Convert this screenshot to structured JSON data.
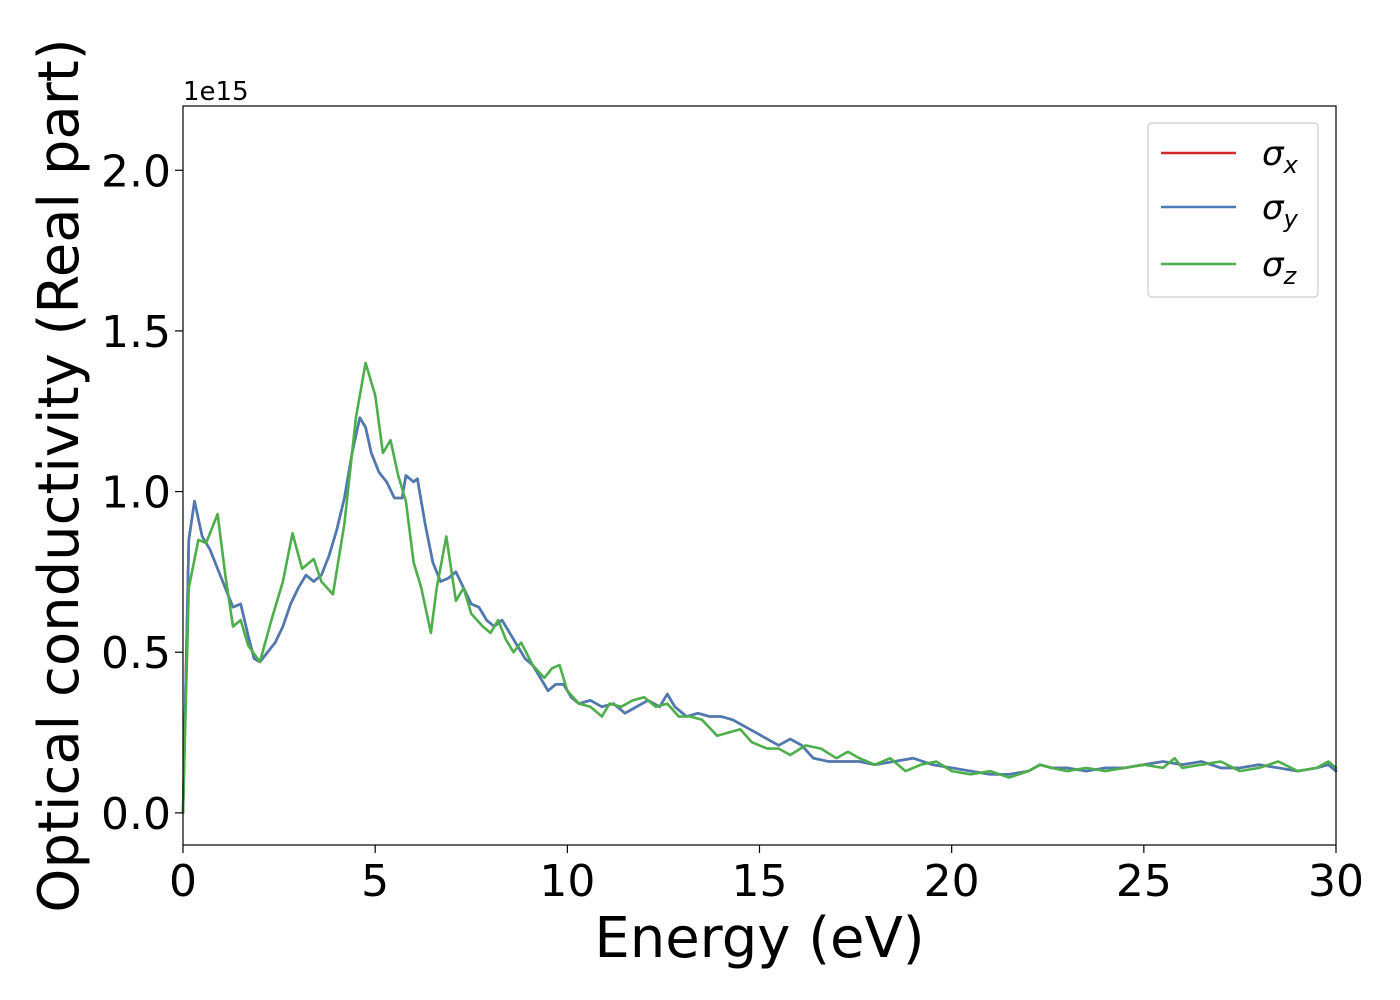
{
  "chart_data": {
    "type": "line",
    "xlabel": "Energy (eV)",
    "ylabel": "Optical conductivity (Real part)",
    "y_offset_label": "1e15",
    "xlim": [
      0,
      30
    ],
    "ylim": [
      -0.1,
      2.2
    ],
    "x_ticks": [
      0,
      5,
      10,
      15,
      20,
      25,
      30
    ],
    "y_ticks": [
      0.0,
      0.5,
      1.0,
      1.5,
      2.0
    ],
    "x_tick_labels": [
      "0",
      "5",
      "10",
      "15",
      "20",
      "25",
      "30"
    ],
    "y_tick_labels": [
      "0.0",
      "0.5",
      "1.0",
      "1.5",
      "2.0"
    ],
    "grid": false,
    "legend_position": "top-right",
    "series": [
      {
        "name": "σx",
        "legend_base": "σ",
        "legend_sub": "x",
        "color": "#d62728",
        "x": [
          0,
          0.15,
          0.3,
          0.5,
          0.7,
          0.9,
          1.1,
          1.3,
          1.5,
          1.7,
          1.85,
          2.0,
          2.2,
          2.4,
          2.6,
          2.8,
          3.0,
          3.2,
          3.4,
          3.6,
          3.8,
          4.0,
          4.2,
          4.4,
          4.6,
          4.75,
          4.9,
          5.1,
          5.3,
          5.5,
          5.7,
          5.8,
          6.0,
          6.1,
          6.3,
          6.5,
          6.7,
          6.9,
          7.1,
          7.3,
          7.5,
          7.7,
          7.9,
          8.1,
          8.3,
          8.5,
          8.7,
          8.9,
          9.1,
          9.3,
          9.5,
          9.7,
          9.9,
          10.1,
          10.3,
          10.6,
          10.9,
          11.2,
          11.5,
          11.8,
          12.1,
          12.4,
          12.6,
          12.8,
          13.1,
          13.4,
          13.7,
          14.0,
          14.3,
          14.6,
          14.9,
          15.2,
          15.5,
          15.8,
          16.1,
          16.4,
          16.8,
          17.2,
          17.6,
          18.0,
          18.5,
          19.0,
          19.5,
          20.0,
          20.5,
          21.0,
          21.5,
          22.0,
          22.3,
          22.6,
          23.0,
          23.5,
          24.0,
          24.5,
          25.0,
          25.5,
          26.0,
          26.5,
          27.0,
          27.5,
          28.0,
          28.5,
          29.0,
          29.5,
          29.8,
          30.0
        ],
        "y": [
          0.0,
          0.85,
          0.97,
          0.86,
          0.82,
          0.76,
          0.7,
          0.64,
          0.65,
          0.55,
          0.48,
          0.47,
          0.5,
          0.53,
          0.58,
          0.65,
          0.7,
          0.74,
          0.72,
          0.74,
          0.8,
          0.88,
          0.98,
          1.12,
          1.23,
          1.2,
          1.12,
          1.06,
          1.03,
          0.98,
          0.98,
          1.05,
          1.03,
          1.04,
          0.9,
          0.78,
          0.72,
          0.73,
          0.75,
          0.7,
          0.65,
          0.64,
          0.6,
          0.58,
          0.6,
          0.56,
          0.52,
          0.48,
          0.46,
          0.42,
          0.38,
          0.4,
          0.4,
          0.36,
          0.34,
          0.35,
          0.33,
          0.34,
          0.31,
          0.33,
          0.35,
          0.33,
          0.37,
          0.33,
          0.3,
          0.31,
          0.3,
          0.3,
          0.29,
          0.27,
          0.25,
          0.23,
          0.21,
          0.23,
          0.21,
          0.17,
          0.16,
          0.16,
          0.16,
          0.15,
          0.16,
          0.17,
          0.15,
          0.14,
          0.13,
          0.12,
          0.12,
          0.13,
          0.15,
          0.14,
          0.14,
          0.13,
          0.14,
          0.14,
          0.15,
          0.16,
          0.15,
          0.16,
          0.14,
          0.14,
          0.15,
          0.14,
          0.13,
          0.14,
          0.15,
          0.13
        ]
      },
      {
        "name": "σy",
        "legend_base": "σ",
        "legend_sub": "y",
        "color": "#4a7bb5",
        "x": [
          0,
          0.15,
          0.3,
          0.5,
          0.7,
          0.9,
          1.1,
          1.3,
          1.5,
          1.7,
          1.85,
          2.0,
          2.2,
          2.4,
          2.6,
          2.8,
          3.0,
          3.2,
          3.4,
          3.6,
          3.8,
          4.0,
          4.2,
          4.4,
          4.6,
          4.75,
          4.9,
          5.1,
          5.3,
          5.5,
          5.7,
          5.8,
          6.0,
          6.1,
          6.3,
          6.5,
          6.7,
          6.9,
          7.1,
          7.3,
          7.5,
          7.7,
          7.9,
          8.1,
          8.3,
          8.5,
          8.7,
          8.9,
          9.1,
          9.3,
          9.5,
          9.7,
          9.9,
          10.1,
          10.3,
          10.6,
          10.9,
          11.2,
          11.5,
          11.8,
          12.1,
          12.4,
          12.6,
          12.8,
          13.1,
          13.4,
          13.7,
          14.0,
          14.3,
          14.6,
          14.9,
          15.2,
          15.5,
          15.8,
          16.1,
          16.4,
          16.8,
          17.2,
          17.6,
          18.0,
          18.5,
          19.0,
          19.5,
          20.0,
          20.5,
          21.0,
          21.5,
          22.0,
          22.3,
          22.6,
          23.0,
          23.5,
          24.0,
          24.5,
          25.0,
          25.5,
          26.0,
          26.5,
          27.0,
          27.5,
          28.0,
          28.5,
          29.0,
          29.5,
          29.8,
          30.0
        ],
        "y": [
          0.0,
          0.85,
          0.97,
          0.86,
          0.82,
          0.76,
          0.7,
          0.64,
          0.65,
          0.55,
          0.48,
          0.47,
          0.5,
          0.53,
          0.58,
          0.65,
          0.7,
          0.74,
          0.72,
          0.74,
          0.8,
          0.88,
          0.98,
          1.12,
          1.23,
          1.2,
          1.12,
          1.06,
          1.03,
          0.98,
          0.98,
          1.05,
          1.03,
          1.04,
          0.9,
          0.78,
          0.72,
          0.73,
          0.75,
          0.7,
          0.65,
          0.64,
          0.6,
          0.58,
          0.6,
          0.56,
          0.52,
          0.48,
          0.46,
          0.42,
          0.38,
          0.4,
          0.4,
          0.36,
          0.34,
          0.35,
          0.33,
          0.34,
          0.31,
          0.33,
          0.35,
          0.33,
          0.37,
          0.33,
          0.3,
          0.31,
          0.3,
          0.3,
          0.29,
          0.27,
          0.25,
          0.23,
          0.21,
          0.23,
          0.21,
          0.17,
          0.16,
          0.16,
          0.16,
          0.15,
          0.16,
          0.17,
          0.15,
          0.14,
          0.13,
          0.12,
          0.12,
          0.13,
          0.15,
          0.14,
          0.14,
          0.13,
          0.14,
          0.14,
          0.15,
          0.16,
          0.15,
          0.16,
          0.14,
          0.14,
          0.15,
          0.14,
          0.13,
          0.14,
          0.15,
          0.13
        ]
      },
      {
        "name": "σz",
        "legend_base": "σ",
        "legend_sub": "z",
        "color": "#4daf4a",
        "x": [
          0,
          0.15,
          0.4,
          0.6,
          0.9,
          1.1,
          1.3,
          1.5,
          1.7,
          2.0,
          2.3,
          2.6,
          2.85,
          3.1,
          3.4,
          3.6,
          3.9,
          4.2,
          4.5,
          4.75,
          5.0,
          5.2,
          5.4,
          5.6,
          5.8,
          6.0,
          6.2,
          6.45,
          6.6,
          6.85,
          7.1,
          7.3,
          7.5,
          7.8,
          8.0,
          8.2,
          8.4,
          8.6,
          8.8,
          9.1,
          9.4,
          9.6,
          9.8,
          10.0,
          10.3,
          10.6,
          10.9,
          11.1,
          11.4,
          11.7,
          12.0,
          12.3,
          12.6,
          12.9,
          13.2,
          13.5,
          13.9,
          14.2,
          14.5,
          14.8,
          15.2,
          15.5,
          15.8,
          16.2,
          16.6,
          17.0,
          17.3,
          17.6,
          18.0,
          18.4,
          18.8,
          19.2,
          19.6,
          20.0,
          20.5,
          21.0,
          21.5,
          22.0,
          22.3,
          22.6,
          23.0,
          23.5,
          24.0,
          24.5,
          25.0,
          25.5,
          25.8,
          26.0,
          26.5,
          27.0,
          27.5,
          28.0,
          28.5,
          29.0,
          29.5,
          29.8,
          30.0
        ],
        "y": [
          0.0,
          0.7,
          0.85,
          0.84,
          0.93,
          0.74,
          0.58,
          0.6,
          0.52,
          0.47,
          0.6,
          0.72,
          0.87,
          0.76,
          0.79,
          0.72,
          0.68,
          0.9,
          1.23,
          1.4,
          1.3,
          1.12,
          1.16,
          1.05,
          0.97,
          0.78,
          0.7,
          0.56,
          0.7,
          0.86,
          0.66,
          0.7,
          0.62,
          0.58,
          0.56,
          0.6,
          0.54,
          0.5,
          0.53,
          0.46,
          0.42,
          0.45,
          0.46,
          0.38,
          0.34,
          0.33,
          0.3,
          0.34,
          0.33,
          0.35,
          0.36,
          0.33,
          0.34,
          0.3,
          0.3,
          0.29,
          0.24,
          0.25,
          0.26,
          0.22,
          0.2,
          0.2,
          0.18,
          0.21,
          0.2,
          0.17,
          0.19,
          0.17,
          0.15,
          0.17,
          0.13,
          0.15,
          0.16,
          0.13,
          0.12,
          0.13,
          0.11,
          0.13,
          0.15,
          0.14,
          0.13,
          0.14,
          0.13,
          0.14,
          0.15,
          0.14,
          0.17,
          0.14,
          0.15,
          0.16,
          0.13,
          0.14,
          0.16,
          0.13,
          0.14,
          0.16,
          0.14
        ]
      }
    ]
  }
}
